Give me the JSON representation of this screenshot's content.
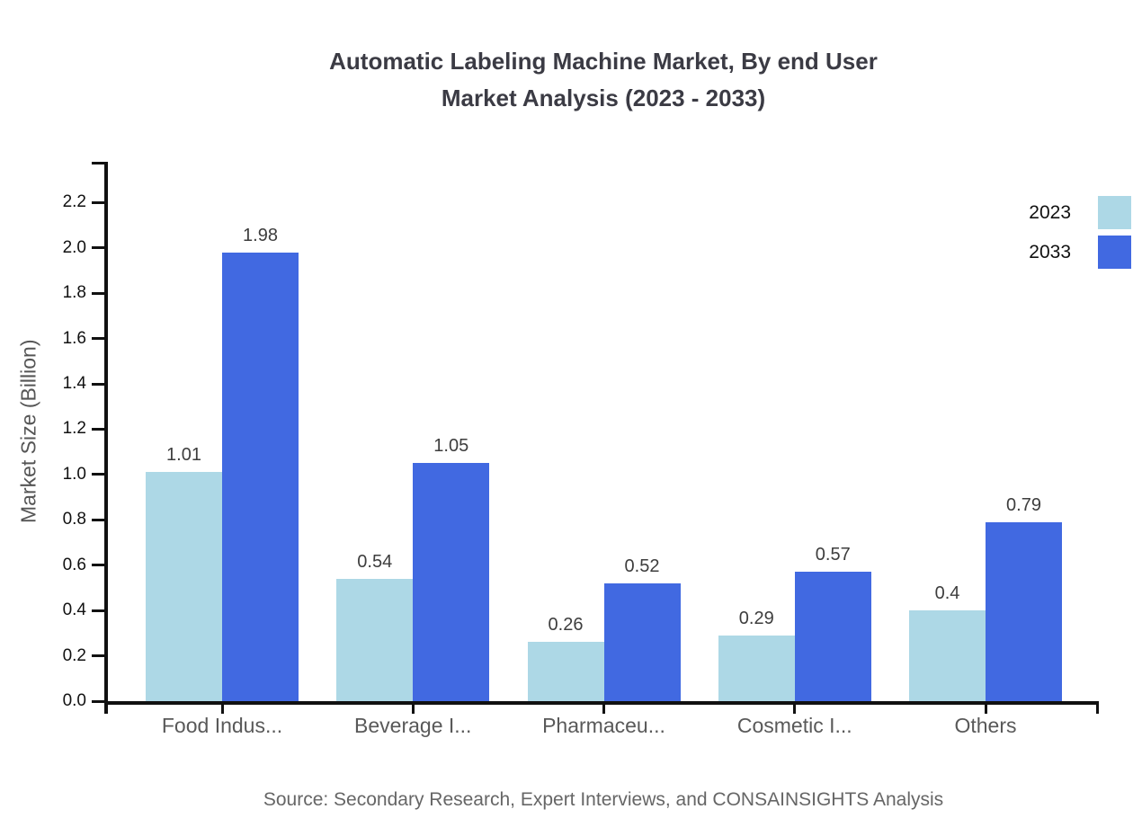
{
  "title": {
    "line1": "Automatic Labeling Machine Market, By end User",
    "line2": "Market Analysis (2023 - 2033)"
  },
  "source_note": "Source: Secondary Research, Expert Interviews, and CONSAINSIGHTS Analysis",
  "colors": {
    "series_2023": "#ADD8E6",
    "series_2033": "#4169E1",
    "axis": "#111111",
    "title_text": "#3b3b44",
    "category_text": "#595959",
    "value_label_text": "#3d3d3d",
    "source_text": "#666666"
  },
  "chart_data": {
    "type": "bar",
    "title": "Automatic Labeling Machine Market, By end User Market Analysis (2023 - 2033)",
    "categories": [
      "Food Indus...",
      "Beverage I...",
      "Pharmaceu...",
      "Cosmetic I...",
      "Others"
    ],
    "series": [
      {
        "name": "2023",
        "color": "#ADD8E6",
        "values": [
          1.01,
          0.54,
          0.26,
          0.29,
          0.4
        ]
      },
      {
        "name": "2033",
        "color": "#4169E1",
        "values": [
          1.98,
          1.05,
          0.52,
          0.57,
          0.79
        ]
      }
    ],
    "xlabel": "",
    "ylabel": "Market Size (Billion)",
    "ylim": [
      0,
      2.38
    ],
    "ytick_labels": [
      "0.0",
      "0.2",
      "0.4",
      "0.6",
      "0.8",
      "1.0",
      "1.2",
      "1.4",
      "1.6",
      "1.8",
      "2.0",
      "2.2"
    ],
    "grid": false,
    "legend_position": "top-right",
    "value_labels": true
  }
}
